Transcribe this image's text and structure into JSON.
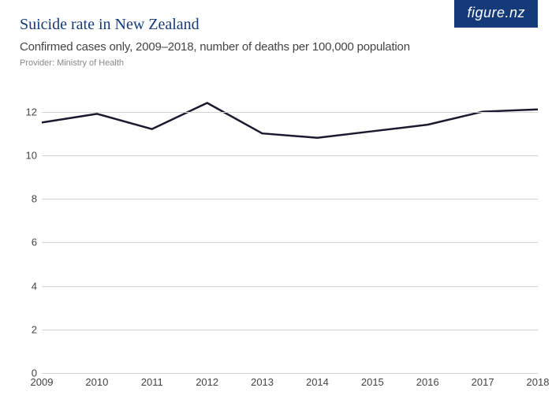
{
  "badge": {
    "text": "figure.nz"
  },
  "header": {
    "title": "Suicide rate in New Zealand",
    "subtitle": "Confirmed cases only, 2009–2018, number of deaths per 100,000 population",
    "provider": "Provider: Ministry of Health"
  },
  "chart": {
    "type": "line",
    "x_categories": [
      "2009",
      "2010",
      "2011",
      "2012",
      "2013",
      "2014",
      "2015",
      "2016",
      "2017",
      "2018"
    ],
    "values": [
      11.5,
      11.9,
      11.2,
      12.4,
      11.0,
      10.8,
      11.1,
      11.4,
      12.0,
      12.1
    ],
    "ylim": [
      0,
      12.6
    ],
    "yticks": [
      0,
      2,
      4,
      6,
      8,
      10,
      12
    ],
    "line_color": "#1a1a2e",
    "line_width": 2.5,
    "grid_color": "#d3d3d3",
    "background_color": "#ffffff",
    "title_color": "#153a7a",
    "badge_bg": "#153a7a",
    "axis_label_color": "#444444",
    "axis_label_fontsize": 13,
    "title_fontsize": 20,
    "subtitle_fontsize": 15
  }
}
